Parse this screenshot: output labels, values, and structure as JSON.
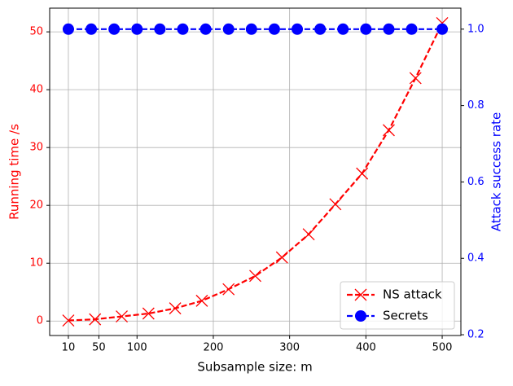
{
  "chart_data": {
    "type": "line",
    "xlabel": "Subsample size:  m",
    "ylabel": "Running time /s",
    "y2label": "Attack success rate",
    "xlim": [
      -14.5,
      524.5
    ],
    "xticks": [
      10,
      50,
      100,
      200,
      300,
      400,
      500
    ],
    "ylim": [
      -2.5,
      54.1
    ],
    "yticks": [
      0,
      10,
      20,
      30,
      40,
      50
    ],
    "y2lim": [
      0.198,
      1.055
    ],
    "y2ticks": [
      0.2,
      0.4,
      0.6,
      0.8,
      {
        "value": 1,
        "label": "1.0"
      }
    ],
    "grid": true,
    "legend": "lower right",
    "ylabel_color": "#ff0000",
    "y2label_color": "#0000ff",
    "series": [
      {
        "name": "NS attack",
        "color": "#ff0000",
        "marker": "x",
        "x": [
          10,
          45,
          80,
          115,
          150,
          185,
          220,
          255,
          290,
          325,
          360,
          395,
          430,
          465,
          500
        ],
        "values": [
          0.1,
          0.3,
          0.8,
          1.3,
          2.2,
          3.5,
          5.5,
          7.8,
          11,
          15,
          20.2,
          25.5,
          33,
          42,
          51.5
        ]
      },
      {
        "name": "Secrets",
        "color": "#0000ff",
        "marker": "o",
        "axis": "y2",
        "x": [
          10,
          40,
          70,
          100,
          130,
          160,
          190,
          220,
          250,
          280,
          310,
          340,
          370,
          400,
          430,
          460,
          500
        ],
        "values": [
          1,
          1,
          1,
          1,
          1,
          1,
          1,
          1,
          1,
          1,
          1,
          1,
          1,
          1,
          1,
          1,
          1
        ]
      }
    ]
  }
}
